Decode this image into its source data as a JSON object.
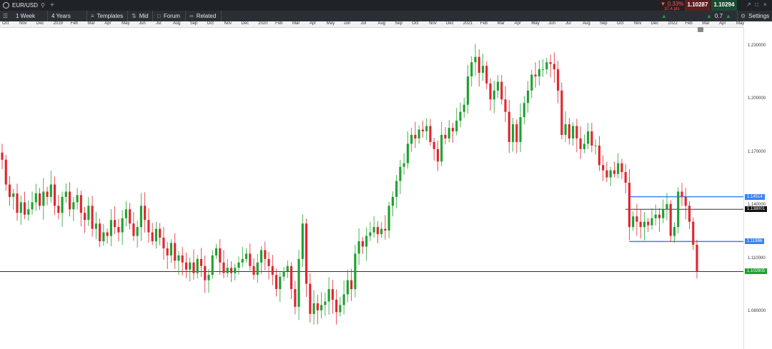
{
  "topbar": {
    "symbol": "EUR/USD",
    "change_pct": "▼ 0.33%",
    "change_pips": "37.4 pts",
    "bid": "1.10287",
    "ask": "1.10294",
    "spread": "0.7"
  },
  "toolbar": {
    "interval": "1 Week",
    "range": "4 Years",
    "templates": "Templates",
    "price_type": "Mid",
    "forum": "Forum",
    "related": "Related",
    "settings": "Settings"
  },
  "timeline": [
    "Oct",
    "Nov",
    "Dec",
    "2019",
    "Feb",
    "Mar",
    "Apr",
    "May",
    "Jun",
    "Jul",
    "Aug",
    "Sep",
    "Oct",
    "Nov",
    "Dec",
    "2020",
    "Feb",
    "Mar",
    "Apr",
    "May",
    "Jun",
    "Jul",
    "Aug",
    "Sep",
    "Oct",
    "Nov",
    "Dec",
    "2021",
    "Feb",
    "Mar",
    "Apr",
    "May",
    "Jun",
    "Jul",
    "Aug",
    "Sep",
    "Oct",
    "Nov",
    "Dec",
    "2022",
    "Feb",
    "Mar",
    "Apr",
    "May"
  ],
  "yaxis": {
    "ticks": [
      "1.230000",
      "1.200000",
      "1.170000",
      "1.140000",
      "1.110000",
      "1.080000"
    ],
    "tick_values": [
      1.23,
      1.2,
      1.17,
      1.14,
      1.11,
      1.08
    ],
    "tags": [
      {
        "label": "1.14514",
        "value": 1.14514,
        "color": "#3b82f6"
      },
      {
        "label": "1.138001",
        "value": 1.138001,
        "color": "#111111"
      },
      {
        "label": "1.11986",
        "value": 1.11986,
        "color": "#3b82f6"
      },
      {
        "label": "1.102905",
        "value": 1.102905,
        "color": "#1fa12f"
      }
    ]
  },
  "colors": {
    "up": "#1fa12f",
    "down": "#e0262f",
    "hline_blue": "#3b82f6",
    "hline_black": "#333333"
  },
  "chart_data": {
    "type": "candlestick",
    "title": "EUR/USD",
    "interval": "1 Week",
    "ylim": [
      1.06,
      1.24
    ],
    "y_ticks": [
      1.08,
      1.11,
      1.14,
      1.17,
      1.2,
      1.23
    ],
    "last_price": 1.102905,
    "horizontal_lines": [
      {
        "value": 1.14514,
        "color": "blue"
      },
      {
        "value": 1.138001,
        "color": "black"
      },
      {
        "value": 1.11986,
        "color": "blue"
      },
      {
        "value": 1.102905,
        "color": "black"
      }
    ],
    "close_series": [
      1.166,
      1.152,
      1.145,
      1.147,
      1.136,
      1.142,
      1.135,
      1.138,
      1.142,
      1.147,
      1.14,
      1.148,
      1.145,
      1.152,
      1.14,
      1.136,
      1.145,
      1.148,
      1.138,
      1.142,
      1.146,
      1.136,
      1.132,
      1.14,
      1.127,
      1.13,
      1.12,
      1.125,
      1.123,
      1.132,
      1.128,
      1.125,
      1.133,
      1.138,
      1.13,
      1.123,
      1.128,
      1.14,
      1.132,
      1.125,
      1.12,
      1.127,
      1.122,
      1.116,
      1.112,
      1.119,
      1.109,
      1.112,
      1.108,
      1.104,
      1.108,
      1.102,
      1.11,
      1.106,
      1.098,
      1.101,
      1.112,
      1.116,
      1.108,
      1.102,
      1.105,
      1.102,
      1.105,
      1.108,
      1.11,
      1.113,
      1.106,
      1.101,
      1.108,
      1.115,
      1.11,
      1.106,
      1.101,
      1.093,
      1.1,
      1.103,
      1.106,
      1.093,
      1.083,
      1.11,
      1.13,
      1.096,
      1.079,
      1.085,
      1.081,
      1.084,
      1.086,
      1.093,
      1.087,
      1.08,
      1.084,
      1.09,
      1.098,
      1.093,
      1.113,
      1.12,
      1.117,
      1.123,
      1.125,
      1.128,
      1.124,
      1.127,
      1.126,
      1.14,
      1.145,
      1.154,
      1.162,
      1.164,
      1.175,
      1.18,
      1.178,
      1.183,
      1.182,
      1.185,
      1.176,
      1.172,
      1.165,
      1.18,
      1.178,
      1.184,
      1.182,
      1.188,
      1.193,
      1.197,
      1.213,
      1.221,
      1.224,
      1.215,
      1.219,
      1.209,
      1.2,
      1.205,
      1.21,
      1.2,
      1.193,
      1.176,
      1.186,
      1.176,
      1.19,
      1.198,
      1.205,
      1.214,
      1.213,
      1.217,
      1.217,
      1.221,
      1.22,
      1.217,
      1.205,
      1.18,
      1.186,
      1.178,
      1.185,
      1.178,
      1.172,
      1.175,
      1.182,
      1.174,
      1.174,
      1.163,
      1.16,
      1.156,
      1.16,
      1.158,
      1.164,
      1.159,
      1.153,
      1.128,
      1.134,
      1.131,
      1.128,
      1.131,
      1.129,
      1.133,
      1.135,
      1.133,
      1.138,
      1.141,
      1.123,
      1.128,
      1.148,
      1.145,
      1.14,
      1.131,
      1.118,
      1.103
    ]
  }
}
